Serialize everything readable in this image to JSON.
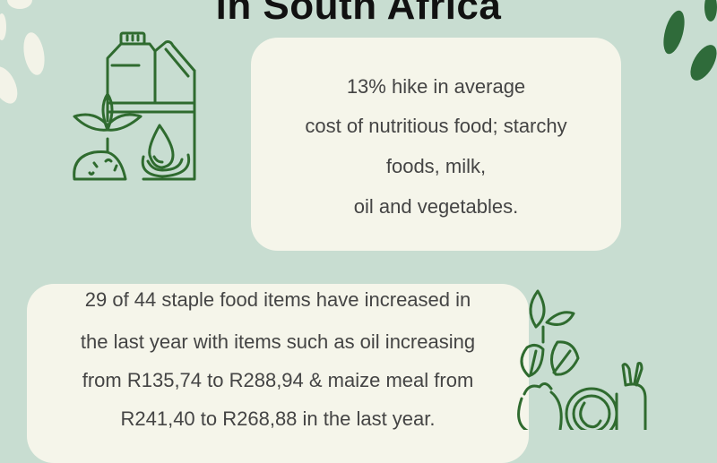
{
  "header": {
    "title": "in South Africa"
  },
  "card1": {
    "lines": [
      "13% hike in average",
      "cost of nutritious food; starchy",
      "foods, milk,",
      "oil and vegetables."
    ]
  },
  "card2": {
    "lines": [
      "29 of 44 staple food items have increased in",
      "the last year with items such as oil increasing",
      "from R135,74 to R288,94 & maize meal from",
      "R241,40 to R268,88 in the last year."
    ]
  },
  "icons": [
    "oil-can-plant-icon",
    "vegetables-icon",
    "leaf-decoration"
  ],
  "colors": {
    "background": "#c8ddd1",
    "card": "#f5f5ea",
    "icon_green": "#2f6b2f",
    "leaf_dark": "#2f6b3a"
  }
}
